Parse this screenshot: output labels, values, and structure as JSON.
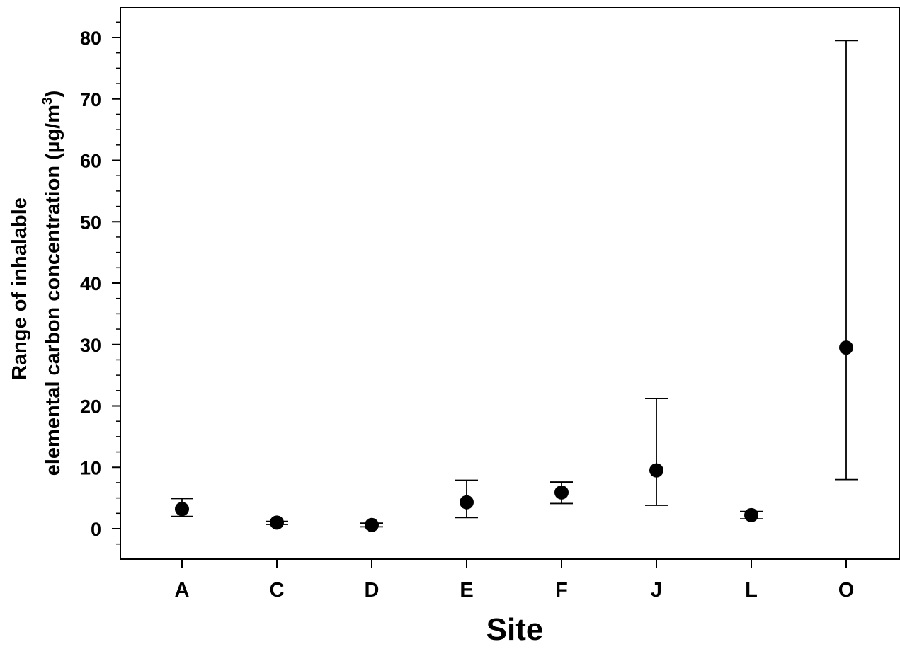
{
  "chart_data": {
    "type": "scatter",
    "categories": [
      "A",
      "C",
      "D",
      "E",
      "F",
      "J",
      "L",
      "O"
    ],
    "values": [
      3.2,
      1.0,
      0.6,
      4.3,
      5.9,
      9.5,
      2.2,
      29.5
    ],
    "error_low": [
      2.0,
      0.7,
      0.3,
      1.8,
      4.1,
      3.8,
      1.6,
      8.0
    ],
    "error_high": [
      4.9,
      1.2,
      0.9,
      7.9,
      7.6,
      21.2,
      2.8,
      79.5
    ],
    "xlabel": "Site",
    "ylabel_line1": "Range of inhalable",
    "ylabel_line2": "elemental carbon concentration (µg/m",
    "ylabel_superscript": "3",
    "ylabel_close": ")",
    "ylim": [
      -5,
      85
    ],
    "yticks": [
      0,
      10,
      20,
      30,
      40,
      50,
      60,
      70,
      80
    ],
    "ytick_labels": [
      "0",
      "10",
      "20",
      "30",
      "40",
      "50",
      "60",
      "70",
      "80"
    ],
    "minor_tick_step": 2.5,
    "grid": false,
    "marker_color": "#000000"
  }
}
